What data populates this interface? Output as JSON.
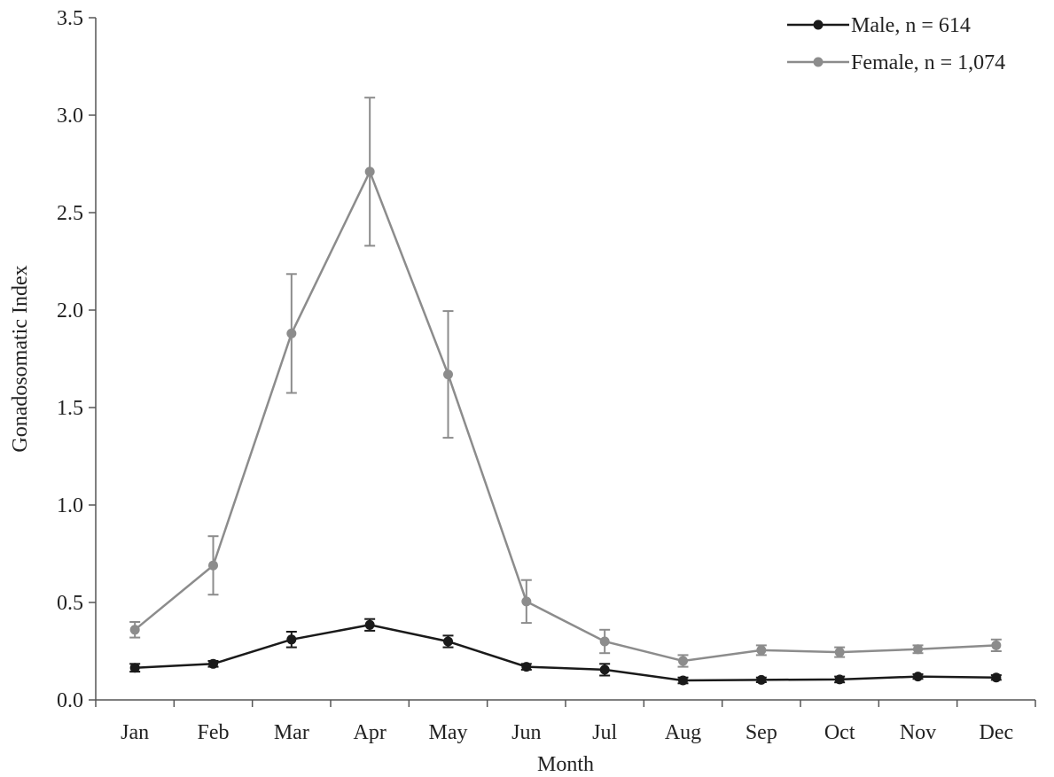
{
  "chart_data": {
    "type": "line",
    "categories": [
      "Jan",
      "Feb",
      "Mar",
      "Apr",
      "May",
      "Jun",
      "Jul",
      "Aug",
      "Sep",
      "Oct",
      "Nov",
      "Dec"
    ],
    "xlabel": "Month",
    "ylabel": "Gonadosomatic Index",
    "ylim": [
      0,
      3.5
    ],
    "yticks": [
      "0.0",
      "0.5",
      "1.0",
      "1.5",
      "2.0",
      "2.5",
      "3.0",
      "3.5"
    ],
    "grid": false,
    "legend_position": "top-right",
    "series": [
      {
        "name": "Male, n = 614",
        "color": "#1a1a1a",
        "values": [
          0.165,
          0.185,
          0.31,
          0.385,
          0.3,
          0.17,
          0.155,
          0.1,
          0.103,
          0.105,
          0.12,
          0.115
        ],
        "error": [
          0.02,
          0.015,
          0.04,
          0.03,
          0.03,
          0.015,
          0.03,
          0.015,
          0.012,
          0.015,
          0.012,
          0.012
        ]
      },
      {
        "name": "Female, n = 1,074",
        "color": "#8c8c8c",
        "values": [
          0.36,
          0.69,
          1.88,
          2.71,
          1.67,
          0.505,
          0.3,
          0.2,
          0.255,
          0.245,
          0.26,
          0.28
        ],
        "error": [
          0.04,
          0.15,
          0.305,
          0.38,
          0.325,
          0.11,
          0.06,
          0.03,
          0.025,
          0.025,
          0.02,
          0.03
        ]
      }
    ]
  }
}
